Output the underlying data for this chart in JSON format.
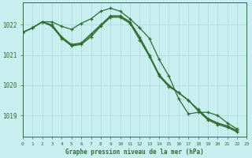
{
  "title": "Graphe pression niveau de la mer (hPa)",
  "background_color": "#c8eef0",
  "grid_color": "#b0dde0",
  "line_color": "#2d6e2d",
  "xlim": [
    0,
    23
  ],
  "ylim": [
    1018.3,
    1022.75
  ],
  "yticks": [
    1019,
    1020,
    1021,
    1022
  ],
  "xticks": [
    0,
    1,
    2,
    3,
    4,
    5,
    6,
    7,
    8,
    9,
    10,
    11,
    12,
    13,
    14,
    15,
    16,
    17,
    18,
    19,
    20,
    21,
    22,
    23
  ],
  "series": [
    {
      "x": [
        0,
        1,
        2,
        3,
        4,
        5,
        6,
        7,
        8,
        9,
        10,
        11,
        12,
        13,
        14,
        15,
        16,
        17,
        18,
        19,
        20,
        21,
        22
      ],
      "y": [
        1021.75,
        1021.9,
        1022.1,
        1022.1,
        1021.95,
        1021.85,
        1022.05,
        1022.2,
        1022.45,
        1022.55,
        1022.45,
        1022.2,
        1021.9,
        1021.55,
        1020.85,
        1020.3,
        1019.55,
        1019.05,
        1019.1,
        1019.1,
        1019.0,
        1018.75,
        1018.55
      ],
      "has_markers": true
    },
    {
      "x": [
        0,
        1,
        2,
        3,
        4,
        5,
        6,
        7,
        8,
        9,
        10,
        11,
        12,
        13,
        14,
        15,
        16,
        17,
        18,
        19,
        20,
        21,
        22
      ],
      "y": [
        1021.75,
        1021.9,
        1022.1,
        1022.0,
        1021.6,
        1021.35,
        1021.4,
        1021.7,
        1022.0,
        1022.3,
        1022.3,
        1022.1,
        1021.6,
        1021.0,
        1020.35,
        1020.0,
        1019.75,
        1019.5,
        1019.2,
        1018.9,
        1018.75,
        1018.65,
        1018.5
      ],
      "has_markers": true
    },
    {
      "x": [
        0,
        1,
        2,
        3,
        4,
        5,
        6,
        7,
        8,
        9,
        10,
        11,
        12,
        13,
        14,
        15,
        16,
        17,
        18,
        19,
        20,
        21,
        22
      ],
      "y": [
        1021.75,
        1021.9,
        1022.1,
        1021.95,
        1021.55,
        1021.3,
        1021.35,
        1021.6,
        1021.95,
        1022.25,
        1022.25,
        1022.05,
        1021.5,
        1020.95,
        1020.3,
        1019.95,
        1019.75,
        1019.5,
        1019.15,
        1018.85,
        1018.7,
        1018.6,
        1018.45
      ],
      "has_markers": true
    },
    {
      "x": [
        0,
        1,
        2,
        3,
        4,
        5,
        6,
        7,
        8,
        9,
        10,
        11,
        12,
        13,
        14,
        15,
        16,
        17,
        18,
        19,
        20,
        21,
        22
      ],
      "y": [
        1021.75,
        1021.9,
        1022.1,
        1021.98,
        1021.58,
        1021.32,
        1021.38,
        1021.65,
        1021.98,
        1022.28,
        1022.28,
        1022.08,
        1021.55,
        1020.98,
        1020.33,
        1019.98,
        1019.75,
        1019.5,
        1019.18,
        1018.88,
        1018.73,
        1018.63,
        1018.48
      ],
      "has_markers": false
    }
  ]
}
